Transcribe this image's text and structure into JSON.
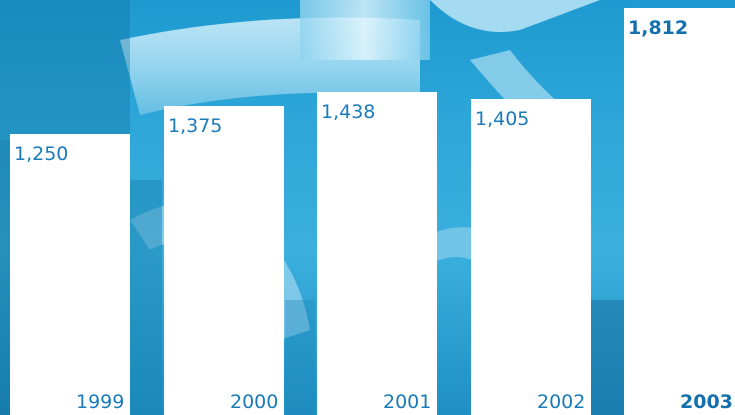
{
  "chart_data": {
    "type": "bar",
    "categories": [
      "1999",
      "2000",
      "2001",
      "2002",
      "2003"
    ],
    "values": [
      1250,
      1375,
      1438,
      1405,
      1812
    ],
    "value_labels": [
      "1,250",
      "1,375",
      "1,438",
      "1,405",
      "1,812"
    ],
    "highlight_index": 4,
    "title": "",
    "xlabel": "",
    "ylabel": "",
    "ylim": [
      0,
      1850
    ],
    "grid": false,
    "legend": "none",
    "colors": {
      "bar": "#ffffff",
      "label": "#1a7bb8",
      "highlight_label": "#1470ad",
      "background": "#2ea6d8"
    }
  }
}
